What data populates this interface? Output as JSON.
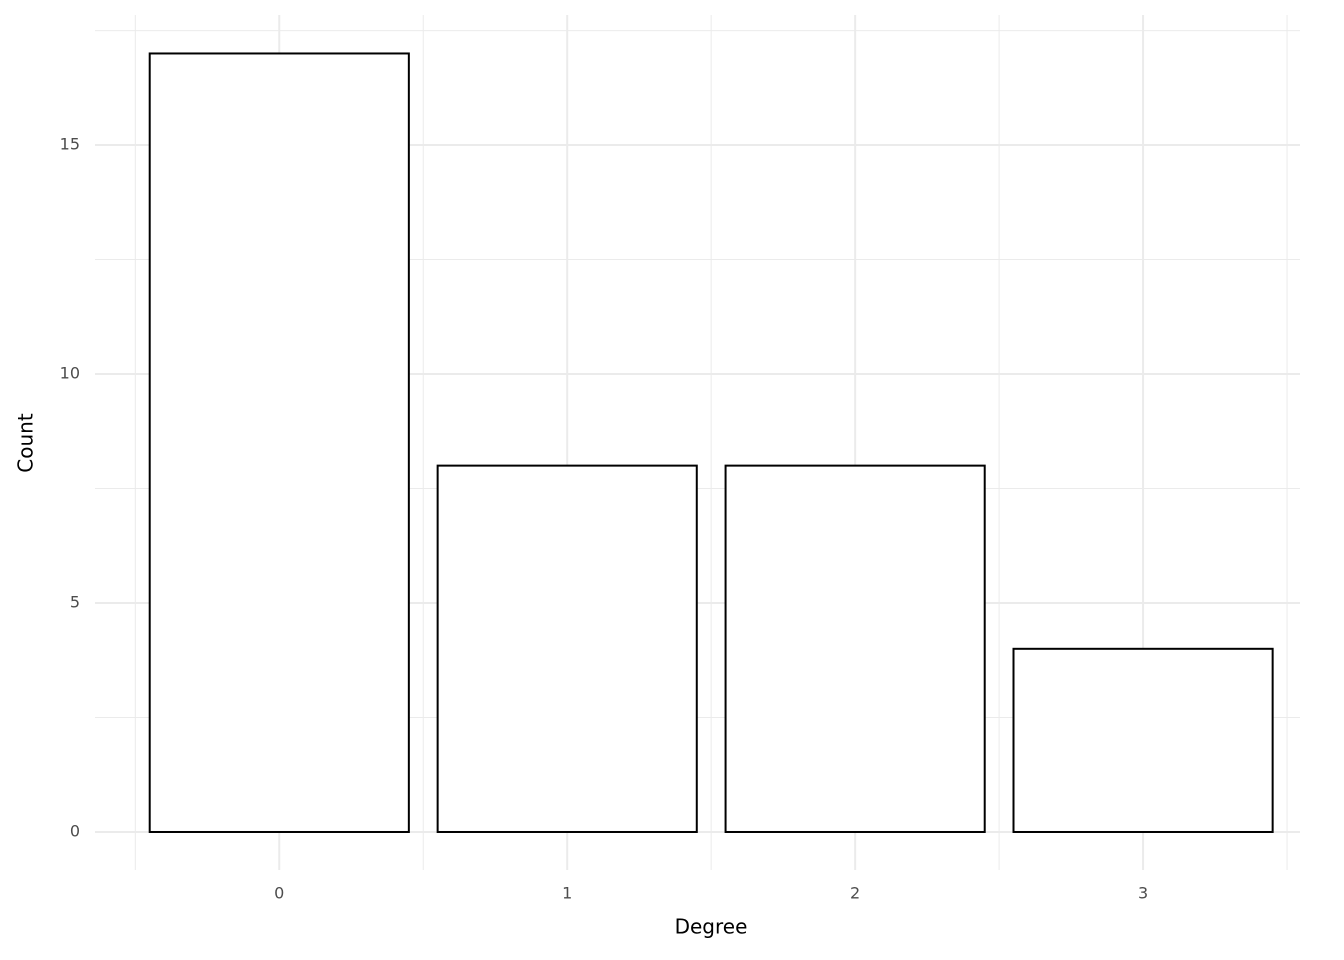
{
  "chart_data": {
    "type": "bar",
    "x_label": "Degree",
    "y_label": "Count",
    "x": [
      0,
      1,
      2,
      3
    ],
    "values": [
      17,
      8,
      8,
      4
    ],
    "fill": "#ffffff",
    "stroke": "#000000",
    "xlim": [
      -0.64,
      3.545
    ],
    "xticks": [
      0,
      1,
      2,
      3
    ],
    "ylim": [
      -0.83,
      17.84
    ],
    "yticks": [
      0,
      5,
      10,
      15
    ],
    "grid": true
  }
}
